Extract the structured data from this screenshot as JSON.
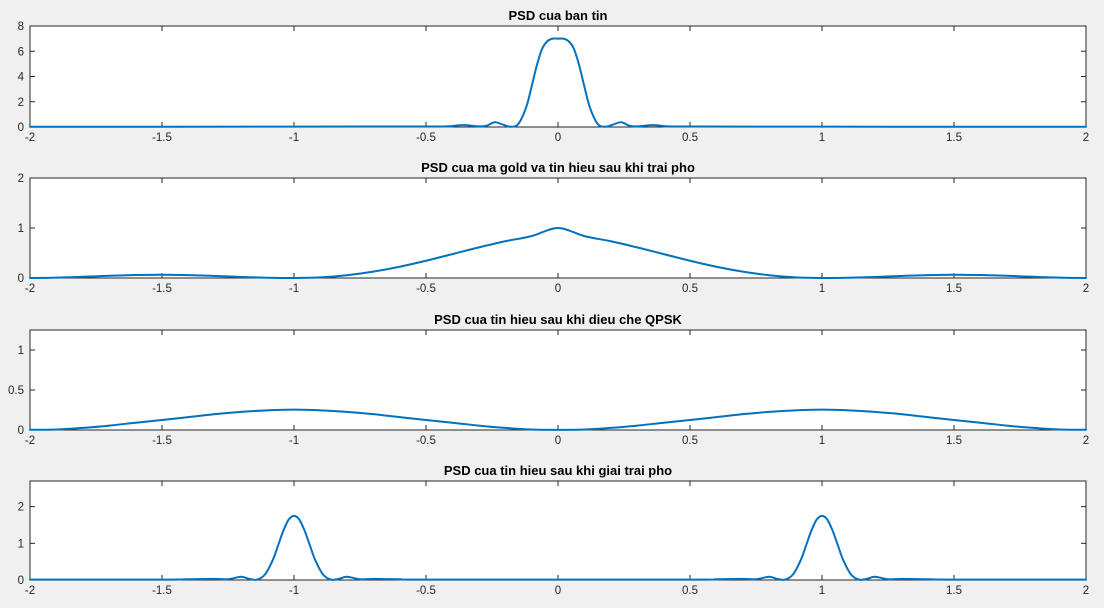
{
  "figure": {
    "background": "#f0f0f0",
    "axes_background": "#ffffff",
    "line_color": "#0072bd"
  },
  "chart_data": [
    {
      "type": "line",
      "title": "PSD cua ban tin",
      "xlabel": "",
      "ylabel": "",
      "xlim": [
        -2,
        2
      ],
      "ylim": [
        0,
        8
      ],
      "x_ticks": [
        -2,
        -1.5,
        -1,
        -0.5,
        0,
        0.5,
        1,
        1.5,
        2
      ],
      "x_tick_labels": [
        "-2",
        "-1.5",
        "-1",
        "-0.5",
        "0",
        "0.5",
        "1",
        "1.5",
        "2"
      ],
      "y_ticks": [
        0,
        2,
        4,
        6,
        8
      ],
      "y_tick_labels": [
        "0",
        "2",
        "4",
        "6",
        "8"
      ],
      "grid": false,
      "series": [
        {
          "color": "#0072bd",
          "x": [
            -2,
            -1.5,
            -0.5,
            -0.42,
            -0.36,
            -0.3,
            -0.27,
            -0.24,
            -0.21,
            -0.18,
            -0.15,
            -0.12,
            -0.1,
            -0.08,
            -0.06,
            -0.04,
            -0.02,
            0,
            0.02,
            0.04,
            0.06,
            0.08,
            0.1,
            0.12,
            0.15,
            0.18,
            0.21,
            0.24,
            0.27,
            0.3,
            0.36,
            0.42,
            0.5,
            1.5,
            2
          ],
          "y": [
            0.02,
            0.02,
            0.04,
            0.05,
            0.15,
            0.05,
            0.1,
            0.38,
            0.2,
            0.02,
            0.25,
            1.6,
            3.2,
            4.9,
            6.2,
            6.8,
            7.0,
            7.0,
            7.0,
            6.8,
            6.2,
            4.9,
            3.2,
            1.6,
            0.25,
            0.02,
            0.2,
            0.38,
            0.1,
            0.05,
            0.15,
            0.05,
            0.04,
            0.02,
            0.02
          ]
        }
      ]
    },
    {
      "type": "line",
      "title": "PSD cua ma gold va tin hieu sau khi trai pho",
      "xlabel": "",
      "ylabel": "",
      "xlim": [
        -2,
        2
      ],
      "ylim": [
        0,
        2
      ],
      "x_ticks": [
        -2,
        -1.5,
        -1,
        -0.5,
        0,
        0.5,
        1,
        1.5,
        2
      ],
      "x_tick_labels": [
        "-2",
        "-1.5",
        "-1",
        "-0.5",
        "0",
        "0.5",
        "1",
        "1.5",
        "2"
      ],
      "y_ticks": [
        0,
        1,
        2
      ],
      "y_tick_labels": [
        "0",
        "1",
        "2"
      ],
      "grid": false,
      "series": [
        {
          "color": "#0072bd",
          "x": [
            -2,
            -1.9,
            -1.8,
            -1.7,
            -1.6,
            -1.5,
            -1.4,
            -1.3,
            -1.2,
            -1.1,
            -1,
            -0.9,
            -0.8,
            -0.7,
            -0.6,
            -0.5,
            -0.4,
            -0.3,
            -0.2,
            -0.1,
            0,
            0.1,
            0.2,
            0.3,
            0.4,
            0.5,
            0.6,
            0.7,
            0.8,
            0.9,
            1,
            1.1,
            1.2,
            1.3,
            1.4,
            1.5,
            1.6,
            1.7,
            1.8,
            1.9,
            2
          ],
          "y": [
            0.0,
            0.007,
            0.024,
            0.044,
            0.059,
            0.065,
            0.058,
            0.041,
            0.021,
            0.006,
            0.0,
            0.012,
            0.055,
            0.127,
            0.225,
            0.345,
            0.478,
            0.612,
            0.735,
            0.838,
            1.0,
            0.838,
            0.735,
            0.612,
            0.478,
            0.345,
            0.225,
            0.127,
            0.055,
            0.012,
            0.0,
            0.006,
            0.021,
            0.041,
            0.058,
            0.065,
            0.059,
            0.044,
            0.024,
            0.007,
            0.0
          ]
        }
      ]
    },
    {
      "type": "line",
      "title": "PSD cua tin hieu sau khi dieu che QPSK",
      "xlabel": "",
      "ylabel": "",
      "xlim": [
        -2,
        2
      ],
      "ylim": [
        0,
        1.25
      ],
      "x_ticks": [
        -2,
        -1.5,
        -1,
        -0.5,
        0,
        0.5,
        1,
        1.5,
        2
      ],
      "x_tick_labels": [
        "-2",
        "-1.5",
        "-1",
        "-0.5",
        "0",
        "0.5",
        "1",
        "1.5",
        "2"
      ],
      "y_ticks": [
        0,
        0.5,
        1
      ],
      "y_tick_labels": [
        "0",
        "0.5",
        "1"
      ],
      "grid": false,
      "series": [
        {
          "color": "#0072bd",
          "x": [
            -2,
            -1.9,
            -1.8,
            -1.7,
            -1.6,
            -1.5,
            -1.4,
            -1.3,
            -1.2,
            -1.1,
            -1,
            -0.9,
            -0.8,
            -0.7,
            -0.6,
            -0.5,
            -0.4,
            -0.3,
            -0.2,
            -0.1,
            0,
            0.1,
            0.2,
            0.3,
            0.4,
            0.5,
            0.6,
            0.7,
            0.8,
            0.9,
            1,
            1.1,
            1.2,
            1.3,
            1.4,
            1.5,
            1.6,
            1.7,
            1.8,
            1.9,
            2
          ],
          "y": [
            0.003,
            0.006,
            0.026,
            0.055,
            0.091,
            0.125,
            0.161,
            0.198,
            0.227,
            0.246,
            0.255,
            0.246,
            0.227,
            0.198,
            0.161,
            0.125,
            0.091,
            0.055,
            0.026,
            0.006,
            0.002,
            0.006,
            0.026,
            0.055,
            0.091,
            0.125,
            0.161,
            0.198,
            0.227,
            0.246,
            0.255,
            0.246,
            0.227,
            0.198,
            0.161,
            0.125,
            0.091,
            0.055,
            0.026,
            0.006,
            0.003
          ]
        }
      ]
    },
    {
      "type": "line",
      "title": "PSD cua tin hieu sau khi giai trai pho",
      "xlabel": "",
      "ylabel": "",
      "xlim": [
        -2,
        2
      ],
      "ylim": [
        0,
        2.7
      ],
      "x_ticks": [
        -2,
        -1.5,
        -1,
        -0.5,
        0,
        0.5,
        1,
        1.5,
        2
      ],
      "x_tick_labels": [
        "-2",
        "-1.5",
        "-1",
        "-0.5",
        "0",
        "0.5",
        "1",
        "1.5",
        "2"
      ],
      "y_ticks": [
        0,
        1,
        2
      ],
      "y_tick_labels": [
        "0",
        "1",
        "2"
      ],
      "grid": false,
      "series": [
        {
          "color": "#0072bd",
          "x": [
            -2,
            -1.5,
            -1.4,
            -1.3,
            -1.25,
            -1.2,
            -1.17,
            -1.14,
            -1.11,
            -1.08,
            -1.06,
            -1.04,
            -1.02,
            -1.0,
            -0.98,
            -0.96,
            -0.94,
            -0.92,
            -0.89,
            -0.86,
            -0.83,
            -0.8,
            -0.75,
            -0.7,
            -0.6,
            -0.5,
            0.5,
            0.6,
            0.7,
            0.75,
            0.8,
            0.83,
            0.86,
            0.89,
            0.92,
            0.94,
            0.96,
            0.98,
            1.0,
            1.02,
            1.04,
            1.06,
            1.08,
            1.11,
            1.14,
            1.17,
            1.2,
            1.25,
            1.3,
            1.4,
            1.5,
            2
          ],
          "y": [
            0.01,
            0.01,
            0.02,
            0.03,
            0.02,
            0.09,
            0.03,
            0.01,
            0.15,
            0.55,
            0.95,
            1.35,
            1.65,
            1.75,
            1.65,
            1.35,
            0.95,
            0.55,
            0.15,
            0.01,
            0.03,
            0.09,
            0.02,
            0.03,
            0.02,
            0.01,
            0.01,
            0.02,
            0.03,
            0.02,
            0.09,
            0.03,
            0.01,
            0.15,
            0.55,
            0.95,
            1.35,
            1.65,
            1.75,
            1.65,
            1.35,
            0.95,
            0.55,
            0.15,
            0.01,
            0.03,
            0.09,
            0.02,
            0.03,
            0.02,
            0.01,
            0.01
          ]
        }
      ]
    }
  ]
}
